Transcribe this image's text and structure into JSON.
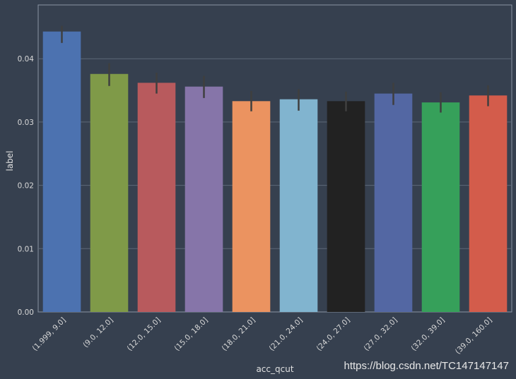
{
  "chart_data": {
    "type": "bar",
    "categories": [
      "(1.999, 9.0]",
      "(9.0, 12.0]",
      "(12.0, 15.0]",
      "(15.0, 18.0]",
      "(18.0, 21.0]",
      "(21.0, 24.0]",
      "(24.0, 27.0]",
      "(27.0, 32.0]",
      "(32.0, 39.0]",
      "(39.0, 160.0]"
    ],
    "values": [
      0.0443,
      0.0376,
      0.0362,
      0.0356,
      0.0333,
      0.0336,
      0.0333,
      0.0345,
      0.0331,
      0.0342
    ],
    "error_low": [
      0.0425,
      0.0357,
      0.0345,
      0.0338,
      0.0317,
      0.0318,
      0.0317,
      0.0327,
      0.0315,
      0.0325
    ],
    "error_high": [
      0.0452,
      0.0393,
      0.0378,
      0.0373,
      0.0349,
      0.0352,
      0.0348,
      0.0362,
      0.0347,
      0.0358
    ],
    "colors": [
      "#4c72b0",
      "#7f9a48",
      "#b85a5d",
      "#8675a9",
      "#eb9360",
      "#81b4cf",
      "#222222",
      "#5367a3",
      "#36a05a",
      "#d35c4b"
    ],
    "xlabel": "acc_qcut",
    "ylabel": "label",
    "ylim": [
      0,
      0.0485
    ],
    "yticks": [
      0.0,
      0.01,
      0.02,
      0.03,
      0.04
    ],
    "ytick_labels": [
      "0.00",
      "0.01",
      "0.02",
      "0.03",
      "0.04"
    ],
    "grid": true,
    "error_bar_color": "#3f3f3f"
  },
  "watermark": "https://blog.csdn.net/TC147147147"
}
